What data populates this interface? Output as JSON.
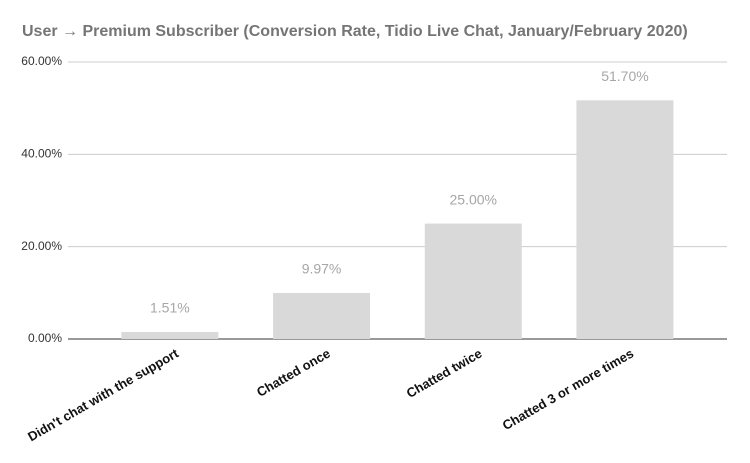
{
  "chart_data": {
    "type": "bar",
    "title": "User → Premium Subscriber (Conversion Rate, Tidio Live Chat, January/February 2020)",
    "categories": [
      "Didn't chat with the support",
      "Chatted once",
      "Chatted twice",
      "Chatted 3 or more times"
    ],
    "values": [
      1.51,
      9.97,
      25,
      51.7
    ],
    "value_labels": [
      "1.51%",
      "9.97%",
      "25.00%",
      "51.70%"
    ],
    "color": "#d9d9d9",
    "ylim": [
      0,
      60
    ],
    "yticks": [
      {
        "value": 0,
        "label": "0.00%"
      },
      {
        "value": 20,
        "label": "20.00%"
      },
      {
        "value": 40,
        "label": "40.00%"
      },
      {
        "value": 60,
        "label": "60.00%"
      }
    ],
    "grid": true
  }
}
